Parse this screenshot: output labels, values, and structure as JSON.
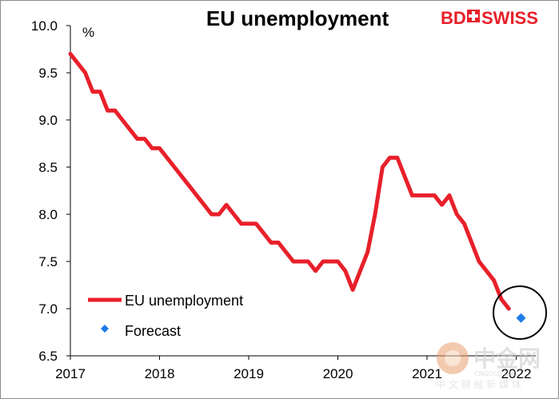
{
  "chart_data": {
    "type": "line",
    "title": "EU unemployment",
    "ylabel": "%",
    "xlabel": "",
    "ylim": [
      6.5,
      10.0
    ],
    "yticks": [
      "10.0",
      "9.5",
      "9.0",
      "8.5",
      "8.0",
      "7.5",
      "7.0",
      "6.5"
    ],
    "xticks": [
      "2017",
      "2018",
      "2019",
      "2020",
      "2021",
      "2022"
    ],
    "grid": false,
    "legend_position": "bottom-left",
    "series": [
      {
        "name": "EU unemployment",
        "color": "#e8202a",
        "x": [
          "2017-01",
          "2017-02",
          "2017-03",
          "2017-04",
          "2017-05",
          "2017-06",
          "2017-07",
          "2017-08",
          "2017-09",
          "2017-10",
          "2017-11",
          "2017-12",
          "2018-01",
          "2018-02",
          "2018-03",
          "2018-04",
          "2018-05",
          "2018-06",
          "2018-07",
          "2018-08",
          "2018-09",
          "2018-10",
          "2018-11",
          "2018-12",
          "2019-01",
          "2019-02",
          "2019-03",
          "2019-04",
          "2019-05",
          "2019-06",
          "2019-07",
          "2019-08",
          "2019-09",
          "2019-10",
          "2019-11",
          "2019-12",
          "2020-01",
          "2020-02",
          "2020-03",
          "2020-04",
          "2020-05",
          "2020-06",
          "2020-07",
          "2020-08",
          "2020-09",
          "2020-10",
          "2020-11",
          "2020-12",
          "2021-01",
          "2021-02",
          "2021-03",
          "2021-04",
          "2021-05",
          "2021-06",
          "2021-07",
          "2021-08",
          "2021-09",
          "2021-10",
          "2021-11",
          "2021-12"
        ],
        "values": [
          9.7,
          9.6,
          9.5,
          9.3,
          9.3,
          9.1,
          9.1,
          9.0,
          8.9,
          8.8,
          8.8,
          8.7,
          8.7,
          8.6,
          8.5,
          8.4,
          8.3,
          8.2,
          8.1,
          8.0,
          8.0,
          8.1,
          8.0,
          7.9,
          7.9,
          7.9,
          7.8,
          7.7,
          7.7,
          7.6,
          7.5,
          7.5,
          7.5,
          7.4,
          7.5,
          7.5,
          7.5,
          7.4,
          7.2,
          7.4,
          7.6,
          8.0,
          8.5,
          8.6,
          8.6,
          8.4,
          8.2,
          8.2,
          8.2,
          8.2,
          8.1,
          8.2,
          8.0,
          7.9,
          7.7,
          7.5,
          7.4,
          7.3,
          7.1,
          7.0
        ]
      },
      {
        "name": "Forecast",
        "color": "#1e7be8",
        "marker": "diamond",
        "x": [
          "2022-01"
        ],
        "values": [
          6.9
        ]
      }
    ],
    "annotations": [
      "circle around forecast point"
    ]
  },
  "brand": {
    "logo_left": "BD",
    "logo_right": "SWISS",
    "color": "#e8202a"
  },
  "watermark": {
    "logo_text": "中金网",
    "sub_text": "CNGOLD.ORG",
    "tagline": "中 文 财 经 新 媒 体"
  }
}
